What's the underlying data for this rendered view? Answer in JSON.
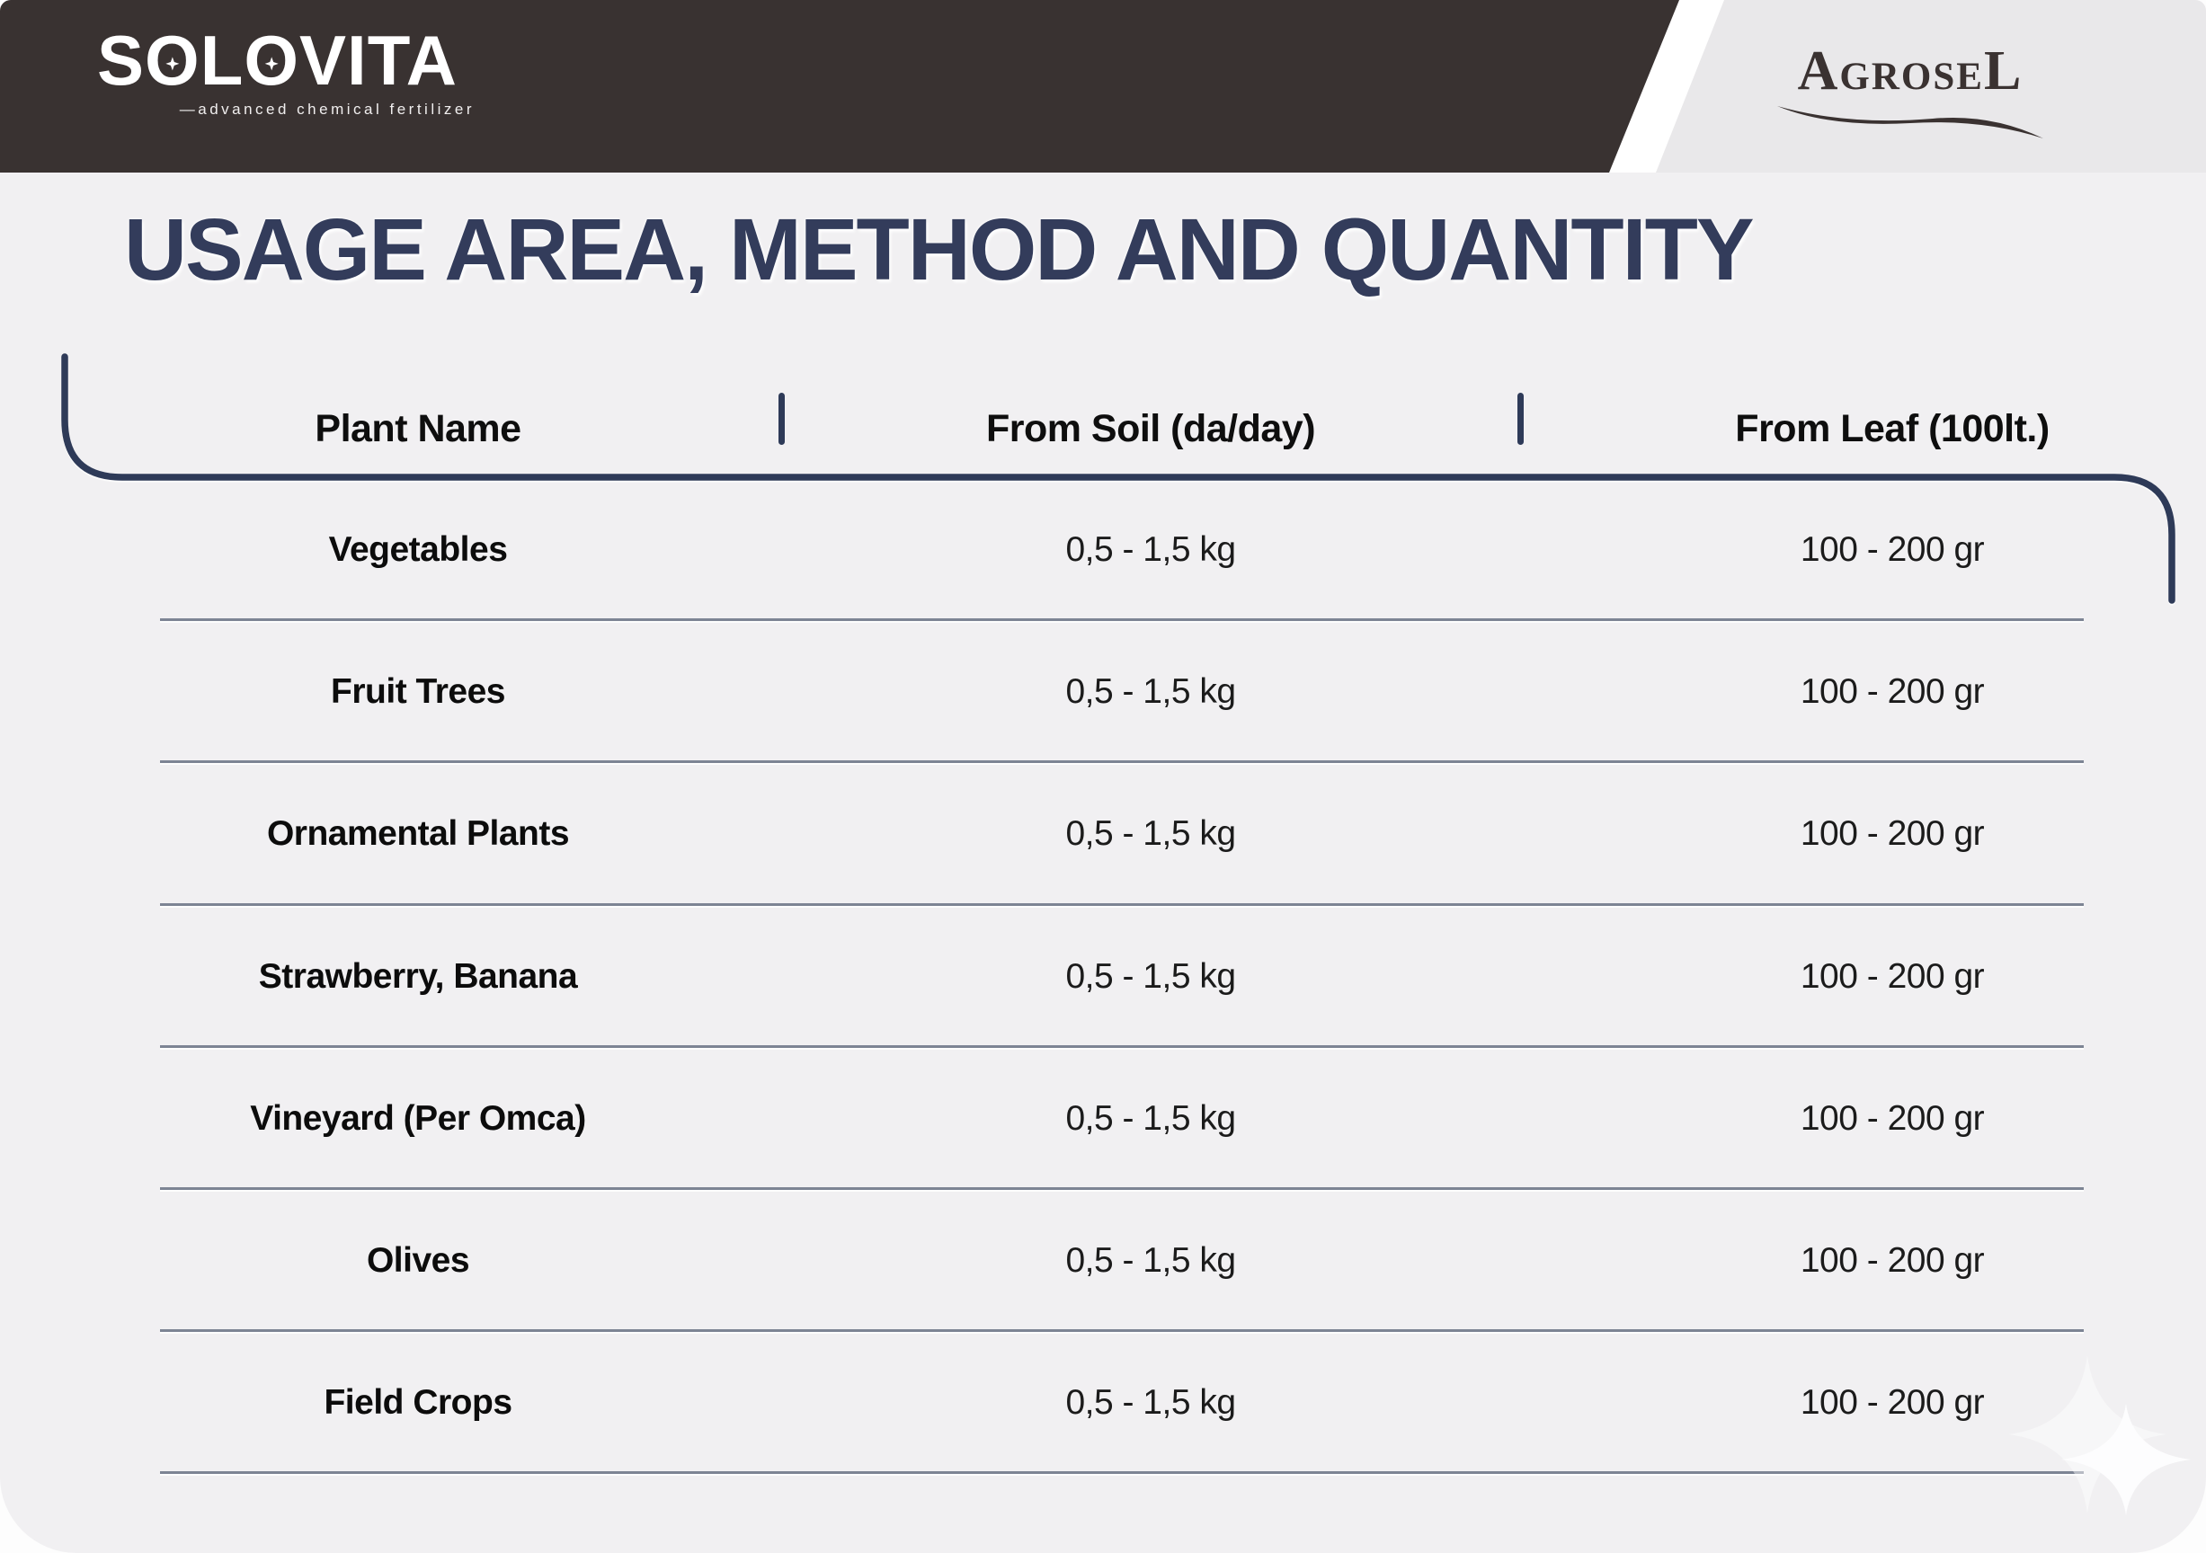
{
  "brand": {
    "name": "SOLOVITA",
    "tagline": "—advanced chemical fertilizer"
  },
  "partner": {
    "name": "AgroseL"
  },
  "page_title": "USAGE AREA, METHOD AND QUANTITY",
  "table": {
    "columns": [
      "Plant Name",
      "From Soil (da/day)",
      "From Leaf (100lt.)"
    ],
    "rows": [
      {
        "plant": "Vegetables",
        "soil": "0,5 - 1,5 kg",
        "leaf": "100 - 200 gr"
      },
      {
        "plant": "Fruit Trees",
        "soil": "0,5 - 1,5 kg",
        "leaf": "100 - 200 gr"
      },
      {
        "plant": "Ornamental Plants",
        "soil": "0,5 - 1,5 kg",
        "leaf": "100 - 200 gr"
      },
      {
        "plant": "Strawberry, Banana",
        "soil": "0,5 - 1,5 kg",
        "leaf": "100 - 200 gr"
      },
      {
        "plant": "Vineyard (Per Omca)",
        "soil": "0,5 - 1,5 kg",
        "leaf": "100 - 200 gr"
      },
      {
        "plant": "Olives",
        "soil": "0,5 - 1,5 kg",
        "leaf": "100 - 200 gr"
      },
      {
        "plant": "Field Crops",
        "soil": "0,5 - 1,5 kg",
        "leaf": "100 - 200 gr"
      }
    ]
  },
  "icons": {
    "flower_in_o": "small-flower-icon",
    "swoosh": "agrosel-swoosh-icon",
    "sparkle": "four-point-sparkle-icon"
  },
  "colors": {
    "header_bar": "#393231",
    "accent_navy": "#2e3a58",
    "title_navy": "#333c5b",
    "panel_light": "#e9e8ea",
    "page_bg": "#f1f0f2",
    "row_separator": "#7d8494"
  }
}
